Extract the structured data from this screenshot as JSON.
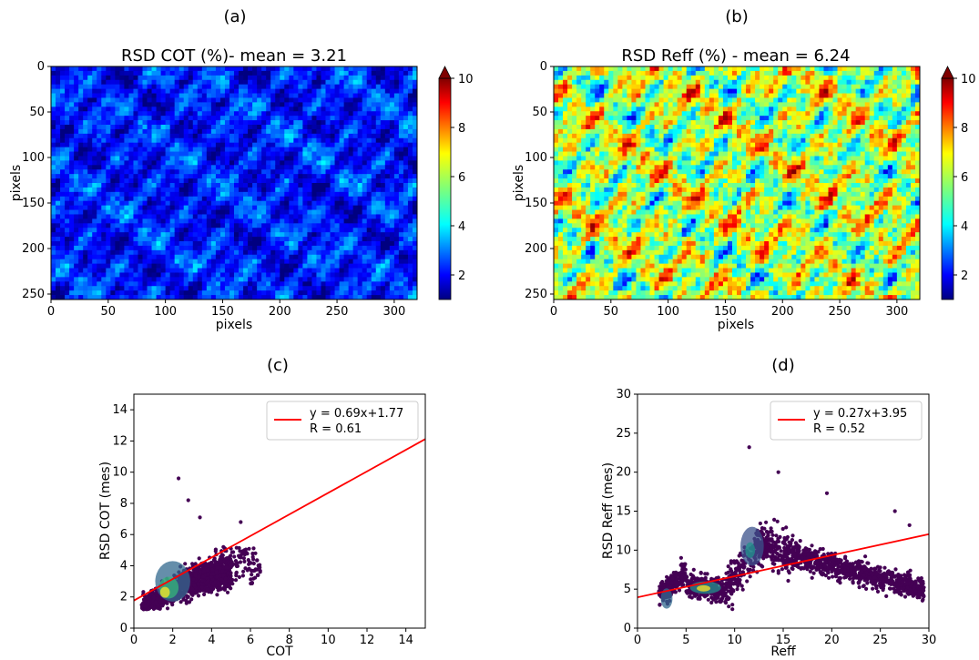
{
  "panel_labels": [
    "(a)",
    "(b)",
    "(c)",
    "(d)"
  ],
  "chart_data": [
    {
      "type": "heatmap",
      "panel": "(a)",
      "title": "RSD COT (%)- mean = 3.21",
      "xlabel": "pixels",
      "ylabel": "pixels",
      "xlim": [
        0,
        320
      ],
      "ylim": [
        256,
        0
      ],
      "xticks": [
        0,
        50,
        100,
        150,
        200,
        250,
        300
      ],
      "yticks": [
        0,
        50,
        100,
        150,
        200,
        250
      ],
      "colorbar": {
        "cmap": "jet",
        "range": [
          1,
          10
        ],
        "ticks": [
          2,
          4,
          6,
          8,
          10
        ],
        "extend": "max"
      },
      "mean": 3.21
    },
    {
      "type": "heatmap",
      "panel": "(b)",
      "title": "RSD Reff (%) - mean = 6.24",
      "xlabel": "pixels",
      "ylabel": "pixels",
      "xlim": [
        0,
        320
      ],
      "ylim": [
        256,
        0
      ],
      "xticks": [
        0,
        50,
        100,
        150,
        200,
        250,
        300
      ],
      "yticks": [
        0,
        50,
        100,
        150,
        200,
        250
      ],
      "colorbar": {
        "cmap": "jet",
        "range": [
          1,
          10
        ],
        "ticks": [
          2,
          4,
          6,
          8,
          10
        ],
        "extend": "max"
      },
      "mean": 6.24
    },
    {
      "type": "scatter",
      "panel": "(c)",
      "xlabel": "COT",
      "ylabel": "RSD COT (mes)",
      "xlim": [
        0,
        15
      ],
      "ylim": [
        0,
        15
      ],
      "xticks": [
        0,
        2,
        4,
        6,
        8,
        10,
        12,
        14
      ],
      "yticks": [
        0,
        2,
        4,
        6,
        8,
        10,
        12,
        14
      ],
      "density_colored": true,
      "cloud": {
        "x_range": [
          0.3,
          7.0
        ],
        "y_range": [
          1.2,
          9.6
        ],
        "peak": [
          2.0,
          3.0
        ]
      },
      "outliers": [
        [
          2.3,
          9.6
        ],
        [
          2.8,
          8.2
        ],
        [
          3.4,
          7.1
        ],
        [
          5.5,
          6.8
        ],
        [
          6.5,
          3.6
        ]
      ],
      "fit": {
        "slope": 0.69,
        "intercept": 1.77,
        "R": 0.61,
        "color": "#ff0000"
      },
      "legend": {
        "position": "top-right",
        "lines": [
          "y = 0.69x+1.77",
          "R = 0.61"
        ]
      }
    },
    {
      "type": "scatter",
      "panel": "(d)",
      "xlabel": "Reff",
      "ylabel": "RSD Reff (mes)",
      "xlim": [
        0,
        30
      ],
      "ylim": [
        0,
        30
      ],
      "xticks": [
        0,
        5,
        10,
        15,
        20,
        25,
        30
      ],
      "yticks": [
        0,
        5,
        10,
        15,
        20,
        25,
        30
      ],
      "density_colored": true,
      "cloud": {
        "x_range": [
          2.0,
          29.5
        ],
        "y_range": [
          1.0,
          23.2
        ],
        "peaks": [
          [
            3.0,
            3.8
          ],
          [
            7.0,
            5.2
          ],
          [
            11.8,
            10.5
          ]
        ]
      },
      "outliers": [
        [
          11.5,
          23.2
        ],
        [
          14.5,
          20.0
        ],
        [
          19.5,
          17.3
        ],
        [
          26.5,
          15.0
        ],
        [
          28.0,
          13.2
        ]
      ],
      "fit": {
        "slope": 0.27,
        "intercept": 3.95,
        "R": 0.52,
        "color": "#ff0000"
      },
      "legend": {
        "position": "top-right",
        "lines": [
          "y = 0.27x+3.95",
          "R = 0.52"
        ]
      }
    }
  ]
}
